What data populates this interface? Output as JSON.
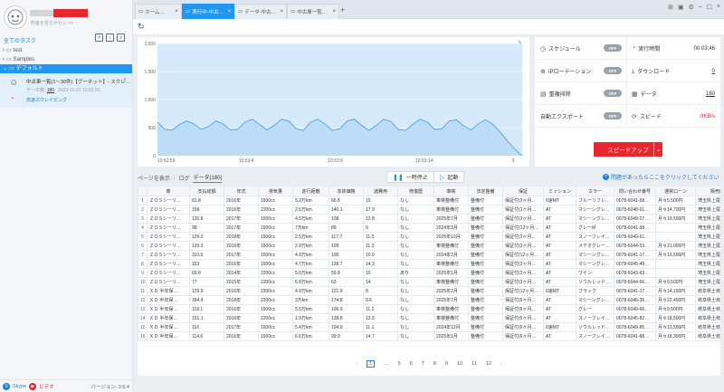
{
  "sidebar": {
    "user_subtitle": "料金を見らか行く >>",
    "all_tasks": "全てのタスク",
    "tree": [
      {
        "label": "test",
        "type": "folder"
      },
      {
        "label": "Samples",
        "type": "folder"
      },
      {
        "label": "デフォルト",
        "type": "folder-open",
        "selected": true
      }
    ],
    "task": {
      "title": "中古車一覧(1～30件)【グーネット】- スクレ…",
      "meta_label": "データ数:",
      "meta_count": "180",
      "meta_date": "2023-11-01 10:52:20",
      "link": "高速スクレイピング"
    },
    "footer": {
      "skype": "Skype",
      "video": "ビデオ",
      "version": "バージョン: 3.6.4"
    }
  },
  "tabs": [
    {
      "label": "ホーム…",
      "active": false
    },
    {
      "label": "実行中-中古…",
      "active": true
    },
    {
      "label": "データ-中古…",
      "active": false
    },
    {
      "label": "中古車一覧…",
      "active": false
    }
  ],
  "chart_data": {
    "type": "area",
    "y_ticks": [
      "2,000",
      "1,500",
      "1,000",
      "500",
      "0"
    ],
    "x_ticks": [
      "10:52:59",
      "10:53:4",
      "10:53:9",
      "10:53:14",
      "0"
    ],
    "ylim": [
      0,
      2000
    ],
    "x": [
      0,
      1,
      2,
      3,
      4,
      5,
      6,
      7,
      8,
      9,
      10,
      11,
      12,
      13,
      14,
      15,
      16,
      17,
      18,
      19,
      20,
      21,
      22,
      23,
      24,
      25,
      26,
      27,
      28,
      29,
      30,
      31,
      32,
      33,
      34,
      35,
      36,
      37,
      38,
      39,
      40,
      41,
      42,
      43,
      44,
      45,
      46,
      47,
      48,
      49,
      50
    ],
    "values": [
      600,
      470,
      455,
      555,
      620,
      570,
      470,
      520,
      620,
      570,
      460,
      470,
      600,
      650,
      560,
      460,
      540,
      650,
      620,
      480,
      450,
      600,
      650,
      560,
      450,
      480,
      620,
      650,
      540,
      450,
      540,
      650,
      610,
      470,
      450,
      560,
      650,
      600,
      470,
      480,
      620,
      640,
      530,
      460,
      570,
      640,
      560,
      420,
      260,
      120,
      0
    ],
    "color": "#3d9be9",
    "fill": "#bcdcf7"
  },
  "stats": {
    "schedule": {
      "label": "スケジュール",
      "state": "OFF"
    },
    "ip_rotation": {
      "label": "IPローテーション",
      "state": "OFF"
    },
    "dedupe": {
      "label": "重複排除",
      "state": "OFF"
    },
    "auto_export": {
      "label": "自動エクスポート",
      "state": "OFF"
    },
    "run_time": {
      "label": "実行時間",
      "value": "00:03:46"
    },
    "download": {
      "label": "ダウンロード",
      "value": "0"
    },
    "data": {
      "label": "データ",
      "value": "180"
    },
    "speed": {
      "label": "スピード",
      "value": "0KB/s"
    },
    "speedup_button": "スピードアップ"
  },
  "view_tabs": {
    "page": "ページを表示",
    "log": "ログ",
    "data": "データ(180)"
  },
  "controls": {
    "pause": "一時停止",
    "start": "起動"
  },
  "help_text": "問題があったらここをクリックしてください",
  "table": {
    "headers": [
      "",
      "車",
      "支払総額",
      "年式",
      "排気量",
      "走行距離",
      "本体価格",
      "諸費用",
      "修復歴",
      "車検",
      "法定整備",
      "保証",
      "ミッション",
      "カラー",
      "問い合わせ番号",
      "通常ローン",
      "販売店"
    ],
    "rows": [
      [
        "1",
        "ＺＯＳシーリ…",
        "81.8",
        "2016年",
        "1500cc",
        "5.2万km",
        "66.8",
        "15",
        "なし",
        "車検整備付",
        "整備付",
        "保証付(3ヶ月…",
        "6速MT",
        "ブルーリフレ…",
        "0078-6041-58…",
        "月々5,500円",
        "埼玉県上尾市…"
      ],
      [
        "2",
        "ＺＯＳシーリ…",
        "158",
        "2016年",
        "2200cc",
        "2.5万km",
        "140.1",
        "17.9",
        "なし",
        "車検整備付",
        "整備付",
        "保証付(3ヶ月…",
        "AT",
        "マシーングレ…",
        "0078-6048-01…",
        "月々14,700円",
        "埼玉県上尾市…"
      ],
      [
        "3",
        "ＺＯＳシーリ…",
        "120.8",
        "2017年",
        "1500cc",
        "4.5万km",
        "108",
        "12.8",
        "なし",
        "2025年7月",
        "整備付",
        "保証付(3ヶ月…",
        "AT",
        "マシーングレ…",
        "0078-6049-27…",
        "月々19,500円",
        "埼玉県上尾市…"
      ],
      [
        "4",
        "ＺＯＳシーリ…",
        "98",
        "2017年",
        "1500cc",
        "7万km",
        "89",
        "9",
        "なし",
        "2024年3月",
        "整備付",
        "保証付(12ヶ月…",
        "AT",
        "グレーM",
        "0078-6041-58…",
        "",
        "埼玉県上尾市…"
      ],
      [
        "5",
        "ＺＯＳシーリ…",
        "129.2",
        "2018年",
        "1500cc",
        "2.5万km",
        "117.7",
        "11.5",
        "なし",
        "2025年10月",
        "整備付",
        "保証付(3ヶ月…",
        "AT",
        "スノーフレイ…",
        "0078-6049-61…",
        "",
        "埼玉県上尾市…"
      ],
      [
        "6",
        "ＺＯＳシーリ…",
        "120.3",
        "2016年",
        "1500cc",
        "2.9万km",
        "109",
        "11.3",
        "なし",
        "車検整備付",
        "整備付",
        "保証付(3ヶ月…",
        "AT",
        "メテオグレー…",
        "0078-6044-53…",
        "月々21,000円",
        "埼玉県上尾市…"
      ],
      [
        "7",
        "ＺＯＳシーリ…",
        "110.9",
        "2017年",
        "1500cc",
        "4.9万km",
        "100",
        "10.9",
        "なし",
        "2024年2月",
        "整備付",
        "保証付(12ヶ月…",
        "AT",
        "マシーングレ…",
        "0078-6041-17…",
        "月々10,500円",
        "埼玉県上尾市…"
      ],
      [
        "8",
        "ＺＯＳシーリ…",
        "153",
        "2016年",
        "1500cc",
        "4.7万km",
        "138.7",
        "14.3",
        "なし",
        "車検整備付",
        "整備付",
        "保証付(3ヶ月…",
        "AT",
        "マシーングレ…",
        "0078-6045-49…",
        "",
        "埼玉県上尾市…"
      ],
      [
        "9",
        "ＺＯＳシーリ…",
        "69.8",
        "2014年",
        "2200cc",
        "5.6万km",
        "59.8",
        "10",
        "あり",
        "2025年1月",
        "整備付",
        "保証付(3ヶ月…",
        "AT",
        "ワイン",
        "0078-6043-63…",
        "",
        "埼玉県上尾市…"
      ],
      [
        "10",
        "ＺＯＳシーリ…",
        "77",
        "2015年",
        "2200cc",
        "6.8万km",
        "63",
        "14",
        "なし",
        "車検整備付",
        "整備付",
        "保証付(3ヶ月…",
        "AT",
        "ソウルレッド…",
        "0078-6044-66…",
        "月々9,500円",
        "埼玉県上尾市…"
      ],
      [
        "11",
        "ＸＤ 半年保…",
        "129.9",
        "2016年",
        "2200cc",
        "4.9万km",
        "121.9",
        "8",
        "なし",
        "2025年2月",
        "整備付",
        "保証付(12ヶ月…",
        "6速MT",
        "ブラック",
        "0078-6041-17…",
        "月々14,100円",
        "岐阜県土岐市…"
      ],
      [
        "12",
        "ＸＤ 半年保…",
        "184.4",
        "2018年",
        "2200cc",
        "3万km",
        "174.8",
        "9.6",
        "なし",
        "2025年7月",
        "整備付",
        "保証付(6ヶ月…",
        "AT",
        "マシーングレ…",
        "0078-6046-35…",
        "月々22,400円",
        "岐阜県土岐市…"
      ],
      [
        "13",
        "ＸＤ 半年保…",
        "118.1",
        "2016年",
        "1500cc",
        "5.5万km",
        "106.9",
        "11.2",
        "なし",
        "車検整備付",
        "整備付",
        "保証付(6ヶ月…",
        "AT",
        "グレー",
        "0078-6049-66…",
        "月々9,500円",
        "岐阜県土岐市…"
      ],
      [
        "14",
        "ＸＤ 半年保…",
        "151.1",
        "2016年",
        "2200cc",
        "1.9万km",
        "138.8",
        "12.3",
        "なし",
        "車検整備付",
        "整備付",
        "保証付(6ヶ月…",
        "AT",
        "スノーフレイ…",
        "0078-6045-82…",
        "月々18,500円",
        "岐阜県土岐市…"
      ],
      [
        "15",
        "ＸＤ 半年保…",
        "116",
        "2017年",
        "1500cc",
        "5.4万km",
        "104.9",
        "11.1",
        "なし",
        "2024年12月",
        "整備付",
        "保証付(6ヶ月…",
        "6速MT",
        "ソウルレッド…",
        "0078-6049-85…",
        "月々13,500円",
        "岐阜県土岐市…"
      ],
      [
        "16",
        "ＸＤ 半年保…",
        "114.6",
        "2016年",
        "1500cc",
        "6.6万km",
        "99.9",
        "14.7",
        "なし",
        "2025年1月",
        "整備付",
        "保証付(6ヶ月…",
        "AT",
        "スノーフレイ…",
        "0078-6041-88…",
        "月々18,300円",
        "岐阜県土岐市…"
      ]
    ]
  },
  "pager": {
    "prev": "‹",
    "pages": [
      "1",
      "…",
      "5",
      "6",
      "7",
      "8",
      "9",
      "10",
      "11",
      "12"
    ],
    "current": "1",
    "next": "›"
  }
}
